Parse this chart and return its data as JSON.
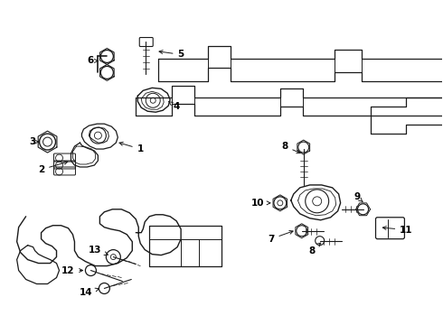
{
  "bg_color": "#ffffff",
  "line_color": "#1a1a1a",
  "text_color": "#000000",
  "figsize": [
    4.9,
    3.6
  ],
  "dpi": 100
}
